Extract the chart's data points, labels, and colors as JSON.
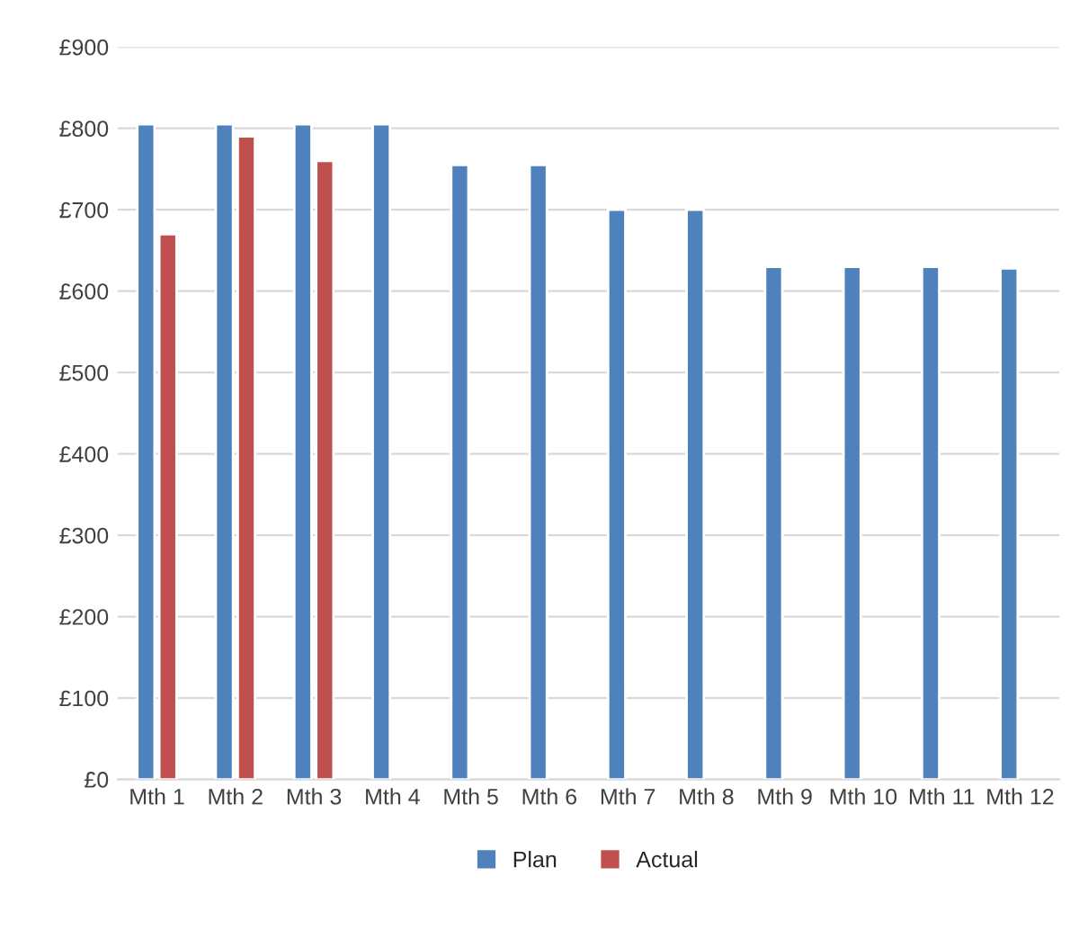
{
  "chart_data": {
    "type": "bar",
    "categories": [
      "Mth 1",
      "Mth 2",
      "Mth 3",
      "Mth 4",
      "Mth 5",
      "Mth 6",
      "Mth 7",
      "Mth 8",
      "Mth 9",
      "Mth 10",
      "Mth 11",
      "Mth 12"
    ],
    "series": [
      {
        "name": "Plan",
        "color": "#4f81bd",
        "values": [
          805,
          805,
          805,
          805,
          755,
          755,
          700,
          700,
          630,
          630,
          630,
          628
        ]
      },
      {
        "name": "Actual",
        "color": "#c0504d",
        "values": [
          670,
          790,
          760,
          null,
          null,
          null,
          null,
          null,
          null,
          null,
          null,
          null
        ]
      }
    ],
    "ylim": [
      0,
      900
    ],
    "yticks": [
      {
        "value": 0,
        "label": "£0"
      },
      {
        "value": 100,
        "label": "£100"
      },
      {
        "value": 200,
        "label": "£200"
      },
      {
        "value": 300,
        "label": "£300"
      },
      {
        "value": 400,
        "label": "£400"
      },
      {
        "value": 500,
        "label": "£500"
      },
      {
        "value": 600,
        "label": "£600"
      },
      {
        "value": 700,
        "label": "£700"
      },
      {
        "value": 800,
        "label": "£800"
      },
      {
        "value": 900,
        "label": "£900"
      }
    ],
    "grid": "y",
    "legend": "bottom"
  }
}
